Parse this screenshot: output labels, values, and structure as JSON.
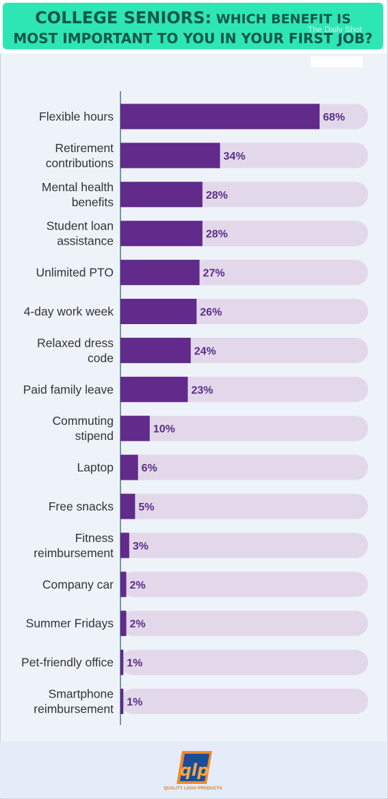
{
  "title": {
    "strong": "COLLEGE SENIORS:",
    "rest_line1": " WHICH BENEFIT IS",
    "line2": "MOST IMPORTANT TO YOU IN YOUR FIRST JOB?"
  },
  "watermark": "The Daily Shot",
  "chart_data": {
    "type": "bar",
    "orientation": "horizontal",
    "categories": [
      "Flexible hours",
      "Retirement contributions",
      "Mental health benefits",
      "Student loan assistance",
      "Unlimited PTO",
      "4-day work week",
      "Relaxed dress code",
      "Paid family leave",
      "Commuting stipend",
      "Laptop",
      "Free snacks",
      "Fitness reimbursement",
      "Company car",
      "Summer Fridays",
      "Pet-friendly office",
      "Smartphone reimbursement"
    ],
    "category_lines": [
      [
        "Flexible hours"
      ],
      [
        "Retirement",
        "contributions"
      ],
      [
        "Mental health",
        "benefits"
      ],
      [
        "Student loan",
        "assistance"
      ],
      [
        "Unlimited PTO"
      ],
      [
        "4-day work week"
      ],
      [
        "Relaxed dress",
        "code"
      ],
      [
        "Paid family leave"
      ],
      [
        "Commuting",
        "stipend"
      ],
      [
        "Laptop"
      ],
      [
        "Free snacks"
      ],
      [
        "Fitness",
        "reimbursement"
      ],
      [
        "Company car"
      ],
      [
        "Summer Fridays"
      ],
      [
        "Pet-friendly office"
      ],
      [
        "Smartphone",
        "reimbursement"
      ]
    ],
    "values": [
      68,
      34,
      28,
      28,
      27,
      26,
      24,
      23,
      10,
      6,
      5,
      3,
      2,
      2,
      1,
      1
    ],
    "value_labels": [
      "68%",
      "34%",
      "28%",
      "28%",
      "27%",
      "26%",
      "24%",
      "23%",
      "10%",
      "6%",
      "5%",
      "3%",
      "2%",
      "2%",
      "1%",
      "1%"
    ],
    "xlim": [
      0,
      100
    ],
    "bar_color": "#612a8b",
    "track_color": "#e2d8ea",
    "label_color": "#5b2d8a"
  },
  "logo": {
    "mark": "qlp",
    "caption": "QUALITY LOGO PRODUCTS"
  }
}
